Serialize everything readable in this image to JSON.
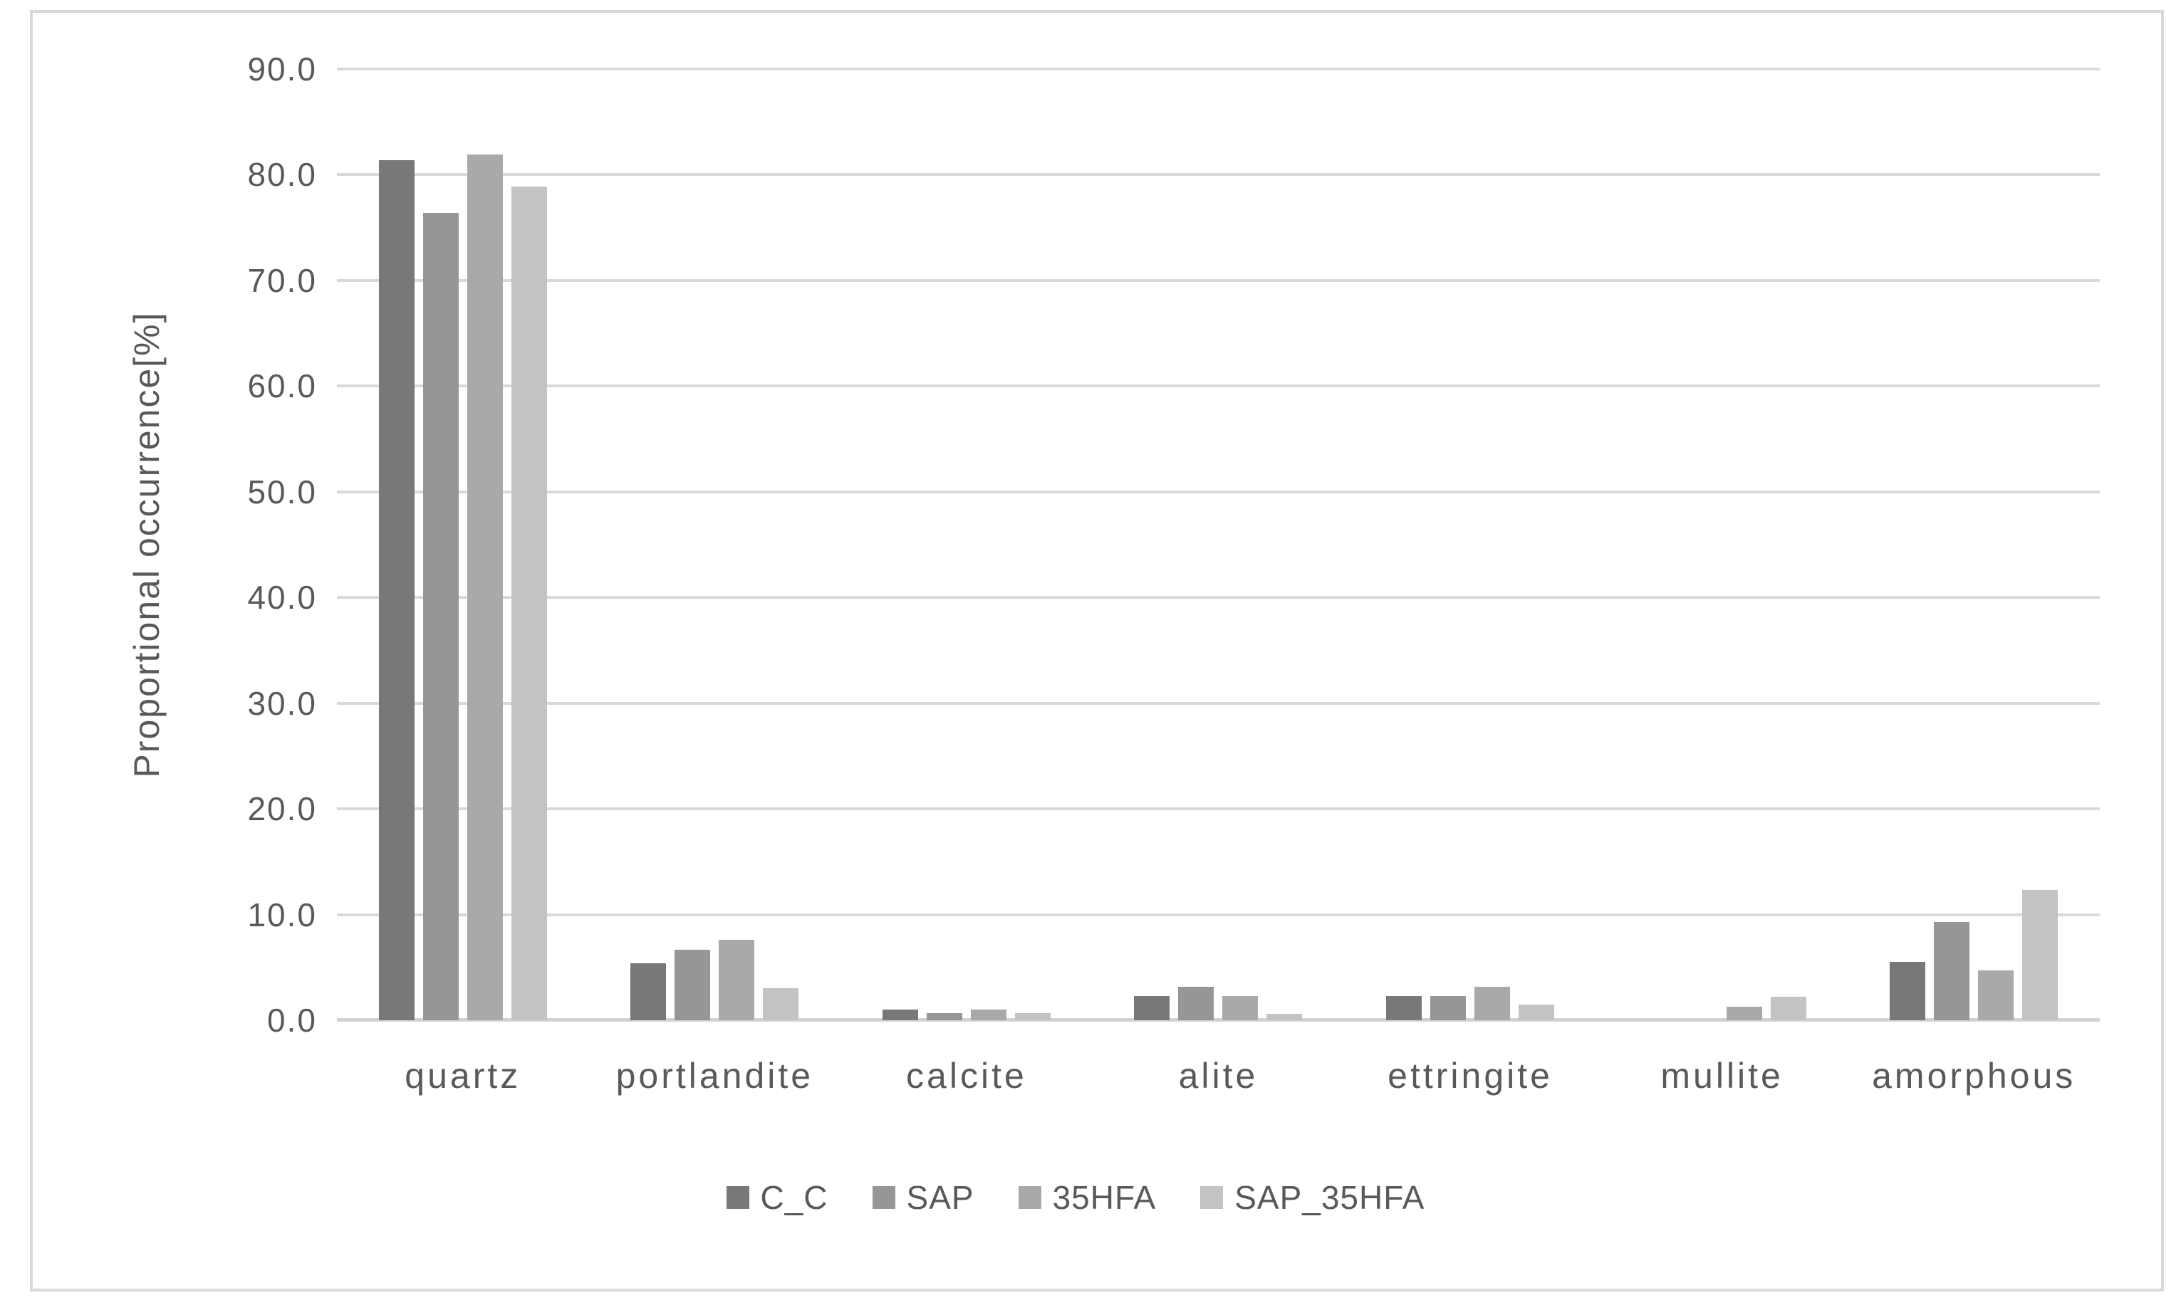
{
  "chart_data": {
    "type": "bar",
    "title": "",
    "xlabel": "",
    "ylabel": "Proportional occurrence[%]",
    "ylim": [
      0,
      90
    ],
    "ytick_step": 10,
    "ytick_decimals": 1,
    "grid": "horizontal",
    "legend_position": "bottom-center",
    "categories": [
      "quartz",
      "portlandite",
      "calcite",
      "alite",
      "ettringite",
      "mullite",
      "amorphous"
    ],
    "series": [
      {
        "name": "C_C",
        "color": "#787878",
        "values": [
          81.4,
          5.4,
          1.0,
          2.3,
          2.3,
          0.0,
          5.5
        ]
      },
      {
        "name": "SAP",
        "color": "#969696",
        "values": [
          76.4,
          6.7,
          0.7,
          3.2,
          2.3,
          0.0,
          9.3
        ]
      },
      {
        "name": "35HFA",
        "color": "#a9a9a9",
        "values": [
          81.9,
          7.6,
          1.0,
          2.3,
          3.2,
          1.3,
          4.7
        ]
      },
      {
        "name": "SAP_35HFA",
        "color": "#c3c3c3",
        "values": [
          78.9,
          3.0,
          0.7,
          0.6,
          1.5,
          2.2,
          12.3
        ]
      }
    ]
  },
  "colors": {
    "text": "#595959",
    "gridline": "#d9d9d9",
    "axis_line": "#d2d2d2",
    "frame_border": "#d9d9d9",
    "background": "#ffffff"
  }
}
